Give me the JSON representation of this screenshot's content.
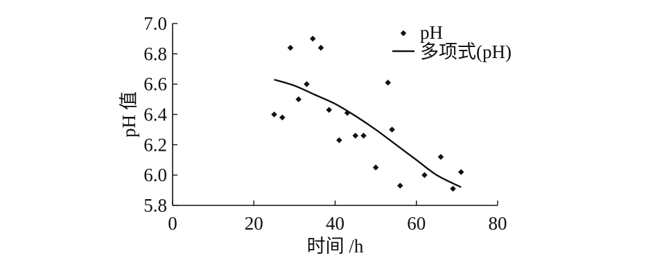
{
  "chart_data": {
    "type": "scatter",
    "title": "",
    "xlabel": "时间 /h",
    "ylabel": "pH 值",
    "xlim": [
      0,
      80
    ],
    "ylim": [
      5.8,
      7.0
    ],
    "x_ticks": [
      0,
      20,
      40,
      60,
      80
    ],
    "x_tick_labels": [
      "0",
      "20",
      "40",
      "60",
      "80"
    ],
    "y_ticks": [
      5.8,
      6.0,
      6.2,
      6.4,
      6.6,
      6.8,
      7.0
    ],
    "y_tick_labels": [
      "5.8",
      "6.0",
      "6.2",
      "6.4",
      "6.6",
      "6.8",
      "7.0"
    ],
    "grid": false,
    "legend_position": "top-right",
    "series": [
      {
        "name": "pH",
        "kind": "scatter",
        "color": "#111111",
        "points": [
          {
            "x": 25,
            "y": 6.4
          },
          {
            "x": 27,
            "y": 6.38
          },
          {
            "x": 29,
            "y": 6.84
          },
          {
            "x": 31,
            "y": 6.5
          },
          {
            "x": 33,
            "y": 6.6
          },
          {
            "x": 34.5,
            "y": 6.9
          },
          {
            "x": 36.5,
            "y": 6.84
          },
          {
            "x": 38.5,
            "y": 6.43
          },
          {
            "x": 41,
            "y": 6.23
          },
          {
            "x": 43,
            "y": 6.41
          },
          {
            "x": 45,
            "y": 6.26
          },
          {
            "x": 47,
            "y": 6.26
          },
          {
            "x": 50,
            "y": 6.05
          },
          {
            "x": 53,
            "y": 6.61
          },
          {
            "x": 54,
            "y": 6.3
          },
          {
            "x": 56,
            "y": 5.93
          },
          {
            "x": 62,
            "y": 6.0
          },
          {
            "x": 66,
            "y": 6.12
          },
          {
            "x": 69,
            "y": 5.91
          },
          {
            "x": 71,
            "y": 6.02
          }
        ]
      },
      {
        "name": "多项式(pH)",
        "kind": "line",
        "color": "#111111",
        "points": [
          {
            "x": 25,
            "y": 6.63
          },
          {
            "x": 30,
            "y": 6.59
          },
          {
            "x": 35,
            "y": 6.53
          },
          {
            "x": 40,
            "y": 6.47
          },
          {
            "x": 45,
            "y": 6.39
          },
          {
            "x": 50,
            "y": 6.3
          },
          {
            "x": 55,
            "y": 6.2
          },
          {
            "x": 60,
            "y": 6.1
          },
          {
            "x": 65,
            "y": 6.0
          },
          {
            "x": 71,
            "y": 5.92
          }
        ]
      }
    ]
  }
}
